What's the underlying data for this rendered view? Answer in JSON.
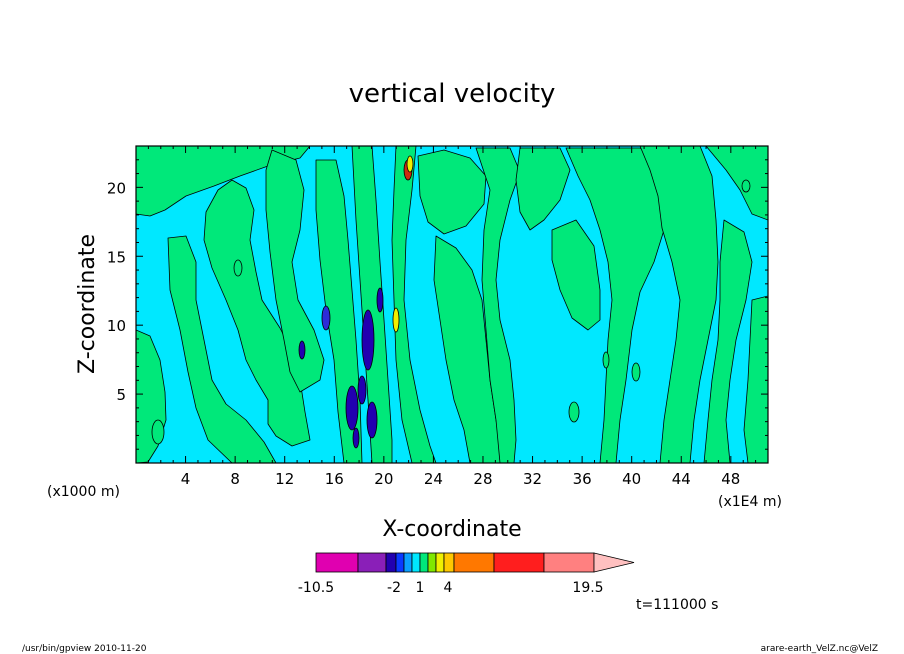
{
  "chart_data": {
    "type": "heatmap",
    "title": "vertical velocity",
    "xlabel": "X-coordinate",
    "ylabel": "Z-coordinate",
    "x_unit_left": "(x1000 m)",
    "x_unit_right": "(x1E4 m)",
    "xlim": [
      0,
      51
    ],
    "ylim": [
      0,
      23
    ],
    "x_ticks": [
      4,
      8,
      12,
      16,
      20,
      24,
      28,
      32,
      36,
      40,
      44,
      48
    ],
    "y_ticks": [
      5,
      10,
      15,
      20
    ],
    "colorbar": {
      "colors": [
        "#e000b0",
        "#8a1fb8",
        "#2200b0",
        "#0a3aff",
        "#0aa0ff",
        "#00e8ff",
        "#00e87a",
        "#80e800",
        "#f0f000",
        "#ffc800",
        "#ff7800",
        "#ff1e1e",
        "#ff8080",
        "#ffc0c0"
      ],
      "labels": [
        "-10.5",
        "-2",
        "1",
        "4",
        "19.5"
      ]
    },
    "field_colors": {
      "background": "#00e8ff",
      "positive": "#00e87a",
      "strong_negative": "#2200b0",
      "positive_accent": "#f0f000"
    },
    "time_label": "t=111000 s"
  },
  "footer": {
    "left": "/usr/bin/gpview   2010-11-20",
    "right": "arare-earth_VelZ.nc@VelZ"
  }
}
